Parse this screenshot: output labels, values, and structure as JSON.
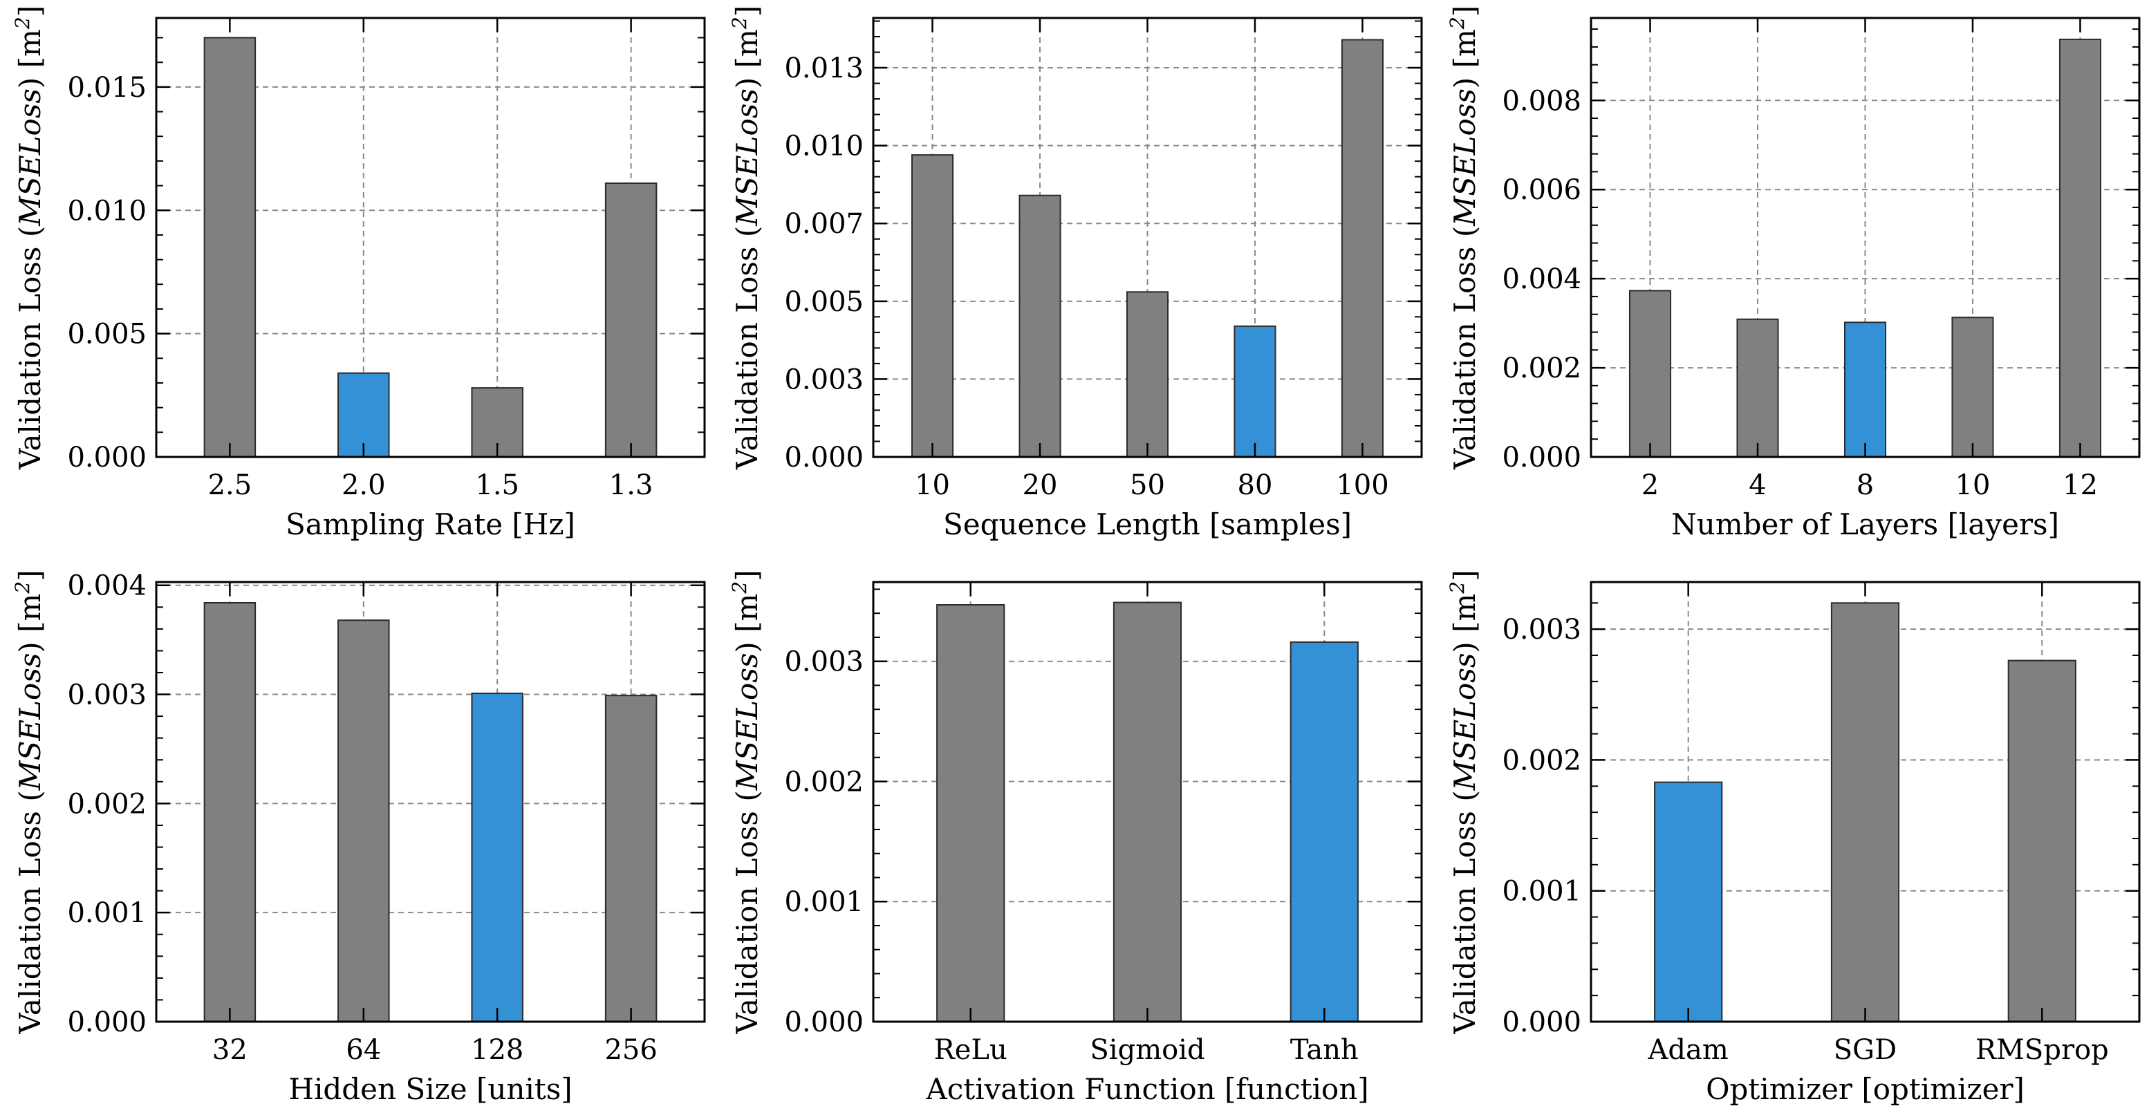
{
  "colors": {
    "default_bar": "#808080",
    "best_bar": "#3591d6",
    "grid": "#8a8a8a"
  },
  "chart_data": [
    {
      "type": "bar",
      "xlabel": "Sampling Rate [Hz]",
      "ylabel_prefix": "Validation Loss (",
      "ylabel_math": "MSELoss",
      "ylabel_unit": ") [m",
      "ylabel_sup": "2",
      "ylabel_close": "]",
      "categories": [
        "2.5",
        "2.0",
        "1.5",
        "1.3"
      ],
      "values": [
        0.017,
        0.0034,
        0.0028,
        0.0111
      ],
      "highlight_index": 1,
      "ylim": [
        0,
        0.0178
      ],
      "yticks": [
        0,
        0.005,
        0.01,
        0.015
      ],
      "ytick_labels": [
        "0.000",
        "0.005",
        "0.010",
        "0.015"
      ],
      "minor_step": 0.001
    },
    {
      "type": "bar",
      "xlabel": "Sequence Length [samples]",
      "ylabel_prefix": "Validation Loss (",
      "ylabel_math": "MSELoss",
      "ylabel_unit": ") [m",
      "ylabel_sup": "2",
      "ylabel_close": "]",
      "categories": [
        "10",
        "20",
        "50",
        "80",
        "100"
      ],
      "values": [
        0.0097,
        0.0084,
        0.0053,
        0.0042,
        0.0134
      ],
      "highlight_index": 3,
      "ylim": [
        0,
        0.0141
      ],
      "yticks": [
        0,
        0.0025,
        0.005,
        0.0075,
        0.01,
        0.0125
      ],
      "ytick_labels": [
        "0.000",
        "0.003",
        "0.005",
        "0.007",
        "0.010",
        "0.013"
      ],
      "minor_step": 0.0005
    },
    {
      "type": "bar",
      "xlabel": "Number of Layers [layers]",
      "ylabel_prefix": "Validation Loss (",
      "ylabel_math": "MSELoss",
      "ylabel_unit": ") [m",
      "ylabel_sup": "2",
      "ylabel_close": "]",
      "categories": [
        "2",
        "4",
        "8",
        "10",
        "12"
      ],
      "values": [
        0.00373,
        0.00309,
        0.00302,
        0.00313,
        0.00937
      ],
      "highlight_index": 2,
      "ylim": [
        0,
        0.00985
      ],
      "yticks": [
        0,
        0.002,
        0.004,
        0.006,
        0.008
      ],
      "ytick_labels": [
        "0.000",
        "0.002",
        "0.004",
        "0.006",
        "0.008"
      ],
      "minor_step": 0.0004
    },
    {
      "type": "bar",
      "xlabel": "Hidden Size [units]",
      "ylabel_prefix": "Validation Loss (",
      "ylabel_math": "MSELoss",
      "ylabel_unit": ") [m",
      "ylabel_sup": "2",
      "ylabel_close": "]",
      "categories": [
        "32",
        "64",
        "128",
        "256"
      ],
      "values": [
        0.00384,
        0.00368,
        0.00301,
        0.00299
      ],
      "highlight_index": 2,
      "ylim": [
        0,
        0.00403
      ],
      "yticks": [
        0,
        0.001,
        0.002,
        0.003,
        0.004
      ],
      "ytick_labels": [
        "0.000",
        "0.001",
        "0.002",
        "0.003",
        "0.004"
      ],
      "minor_step": 0.0002
    },
    {
      "type": "bar",
      "xlabel": "Activation Function [function]",
      "ylabel_prefix": "Validation Loss (",
      "ylabel_math": "MSELoss",
      "ylabel_unit": ") [m",
      "ylabel_sup": "2",
      "ylabel_close": "]",
      "categories": [
        "ReLu",
        "Sigmoid",
        "Tanh"
      ],
      "values": [
        0.00347,
        0.00349,
        0.00316
      ],
      "highlight_index": 2,
      "ylim": [
        0,
        0.00366
      ],
      "yticks": [
        0,
        0.001,
        0.002,
        0.003
      ],
      "ytick_labels": [
        "0.000",
        "0.001",
        "0.002",
        "0.003"
      ],
      "minor_step": 0.0002
    },
    {
      "type": "bar",
      "xlabel": "Optimizer [optimizer]",
      "ylabel_prefix": "Validation Loss (",
      "ylabel_math": "MSELoss",
      "ylabel_unit": ") [m",
      "ylabel_sup": "2",
      "ylabel_close": "]",
      "categories": [
        "Adam",
        "SGD",
        "RMSprop"
      ],
      "values": [
        0.00183,
        0.0032,
        0.00276
      ],
      "highlight_index": 0,
      "ylim": [
        0,
        0.00336
      ],
      "yticks": [
        0,
        0.001,
        0.002,
        0.003
      ],
      "ytick_labels": [
        "0.000",
        "0.001",
        "0.002",
        "0.003"
      ],
      "minor_step": 0.0002
    }
  ]
}
